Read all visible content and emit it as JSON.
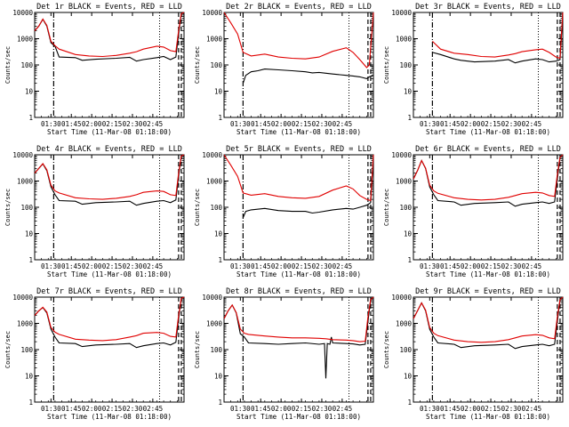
{
  "chart_data": [
    {
      "type": "line",
      "title": "Det 1r BLACK = Events, RED = LLD",
      "xlabel": "Start Time (11-Mar-08 01:18:00)",
      "ylabel": "Counts/sec",
      "yscale": "log",
      "ylim": [
        1,
        10000
      ],
      "xtick_labels": [
        "01:30",
        "01:45",
        "02:00",
        "02:15",
        "02:30",
        "02:45"
      ],
      "series": [
        {
          "name": "Events",
          "color": "#000000",
          "x": [
            0,
            3,
            6,
            9,
            12,
            15,
            18,
            30,
            35,
            45,
            60,
            70,
            75,
            80,
            90,
            95,
            100,
            104,
            106,
            108,
            110
          ],
          "y": [
            2000,
            3000,
            5500,
            3000,
            700,
            520,
            200,
            190,
            150,
            165,
            180,
            195,
            140,
            160,
            190,
            210,
            160,
            200,
            1500,
            9000,
            11000
          ]
        },
        {
          "name": "LLD",
          "color": "#e00000",
          "x": [
            0,
            3,
            6,
            9,
            12,
            15,
            18,
            30,
            40,
            50,
            60,
            70,
            75,
            80,
            90,
            95,
            100,
            104,
            106,
            108,
            110
          ],
          "y": [
            2000,
            3000,
            5600,
            3200,
            800,
            540,
            400,
            250,
            220,
            210,
            230,
            280,
            320,
            400,
            520,
            480,
            350,
            320,
            2000,
            9000,
            11000
          ]
        }
      ]
    },
    {
      "type": "line",
      "title": "Det 2r BLACK = Events, RED = LLD",
      "xlabel": "Start Time (11-Mar-08 01:18:00)",
      "ylabel": "Counts/sec",
      "yscale": "log",
      "ylim": [
        1,
        10000
      ],
      "xtick_labels": [
        "01:30",
        "01:45",
        "02:00",
        "02:15",
        "02:30",
        "02:45"
      ],
      "series": [
        {
          "name": "Events",
          "color": "#000000",
          "x": [
            14,
            16,
            20,
            25,
            30,
            40,
            50,
            60,
            65,
            70,
            80,
            90,
            95,
            100,
            105,
            107,
            110
          ],
          "y": [
            20,
            40,
            55,
            60,
            70,
            65,
            60,
            55,
            50,
            52,
            45,
            40,
            38,
            35,
            30,
            35,
            40
          ]
        },
        {
          "name": "LLD",
          "color": "#e00000",
          "x": [
            0,
            5,
            10,
            14,
            20,
            30,
            40,
            50,
            60,
            70,
            80,
            90,
            95,
            100,
            105,
            107,
            110
          ],
          "y": [
            11000,
            4000,
            1500,
            300,
            220,
            260,
            200,
            180,
            170,
            200,
            330,
            450,
            300,
            160,
            80,
            100,
            11000
          ]
        }
      ]
    },
    {
      "type": "line",
      "title": "Det 3r BLACK = Events, RED = LLD",
      "xlabel": "Start Time (11-Mar-08 01:18:00)",
      "ylabel": "Counts/sec",
      "yscale": "log",
      "ylim": [
        1,
        10000
      ],
      "xtick_labels": [
        "01:30",
        "01:45",
        "02:00",
        "02:15",
        "02:30",
        "02:45"
      ],
      "series": [
        {
          "name": "Events",
          "color": "#000000",
          "x": [
            14,
            20,
            30,
            35,
            45,
            60,
            70,
            75,
            80,
            90,
            95,
            100,
            105,
            108,
            110
          ],
          "y": [
            300,
            250,
            170,
            150,
            130,
            140,
            160,
            120,
            140,
            170,
            160,
            130,
            140,
            160,
            10000
          ]
        },
        {
          "name": "LLD",
          "color": "#e00000",
          "x": [
            14,
            20,
            30,
            40,
            50,
            60,
            70,
            75,
            80,
            90,
            95,
            100,
            105,
            108,
            110
          ],
          "y": [
            800,
            400,
            280,
            250,
            210,
            200,
            240,
            270,
            320,
            380,
            400,
            300,
            200,
            180,
            11000
          ]
        }
      ]
    },
    {
      "type": "line",
      "title": "Det 4r BLACK = Events, RED = LLD",
      "xlabel": "Start Time (11-Mar-08 01:18:00)",
      "ylabel": "Counts/sec",
      "yscale": "log",
      "ylim": [
        1,
        10000
      ],
      "xtick_labels": [
        "01:30",
        "01:45",
        "02:00",
        "02:15",
        "02:30",
        "02:45"
      ],
      "series": [
        {
          "name": "Events",
          "color": "#000000",
          "x": [
            0,
            3,
            6,
            9,
            12,
            15,
            18,
            30,
            35,
            45,
            60,
            70,
            75,
            80,
            90,
            95,
            100,
            104,
            106,
            108,
            110
          ],
          "y": [
            2000,
            3000,
            4500,
            2500,
            600,
            300,
            180,
            170,
            130,
            150,
            160,
            170,
            120,
            140,
            170,
            180,
            150,
            190,
            1500,
            9000,
            11000
          ]
        },
        {
          "name": "LLD",
          "color": "#e00000",
          "x": [
            0,
            3,
            6,
            9,
            12,
            15,
            18,
            30,
            40,
            50,
            60,
            70,
            75,
            80,
            90,
            95,
            100,
            104,
            106,
            108,
            110
          ],
          "y": [
            2000,
            3000,
            4600,
            2700,
            700,
            420,
            350,
            230,
            210,
            200,
            220,
            260,
            300,
            370,
            420,
            400,
            300,
            280,
            2000,
            9000,
            11000
          ]
        }
      ]
    },
    {
      "type": "line",
      "title": "Det 5r BLACK = Events, RED = LLD",
      "xlabel": "Start Time (11-Mar-08 01:18:00)",
      "ylabel": "Counts/sec",
      "yscale": "log",
      "ylim": [
        1,
        10000
      ],
      "xtick_labels": [
        "01:30",
        "01:45",
        "02:00",
        "02:15",
        "02:30",
        "02:45"
      ],
      "series": [
        {
          "name": "Events",
          "color": "#000000",
          "x": [
            14,
            16,
            20,
            30,
            40,
            50,
            60,
            65,
            70,
            80,
            90,
            95,
            100,
            105,
            108,
            110
          ],
          "y": [
            40,
            70,
            80,
            90,
            75,
            70,
            70,
            60,
            65,
            80,
            90,
            85,
            100,
            120,
            150,
            11000
          ]
        },
        {
          "name": "LLD",
          "color": "#e00000",
          "x": [
            0,
            5,
            10,
            14,
            20,
            30,
            40,
            50,
            60,
            70,
            80,
            90,
            95,
            100,
            105,
            108,
            110
          ],
          "y": [
            11000,
            4000,
            1500,
            350,
            290,
            330,
            260,
            230,
            220,
            260,
            450,
            650,
            500,
            280,
            200,
            180,
            11000
          ]
        }
      ]
    },
    {
      "type": "line",
      "title": "Det 6r BLACK = Events, RED = LLD",
      "xlabel": "Start Time (11-Mar-08 01:18:00)",
      "ylabel": "Counts/sec",
      "yscale": "log",
      "ylim": [
        1,
        10000
      ],
      "xtick_labels": [
        "01:30",
        "01:45",
        "02:00",
        "02:15",
        "02:30",
        "02:45"
      ],
      "series": [
        {
          "name": "Events",
          "color": "#000000",
          "x": [
            0,
            3,
            6,
            9,
            12,
            15,
            18,
            30,
            35,
            45,
            60,
            70,
            75,
            80,
            90,
            95,
            100,
            104,
            106,
            108,
            110
          ],
          "y": [
            1200,
            2500,
            6000,
            3000,
            600,
            300,
            180,
            160,
            120,
            140,
            150,
            160,
            110,
            130,
            150,
            160,
            140,
            160,
            1200,
            8000,
            11000
          ]
        },
        {
          "name": "LLD",
          "color": "#e00000",
          "x": [
            0,
            3,
            6,
            9,
            12,
            15,
            18,
            30,
            40,
            50,
            60,
            70,
            75,
            80,
            90,
            95,
            100,
            104,
            106,
            108,
            110
          ],
          "y": [
            1200,
            2500,
            6000,
            3100,
            700,
            420,
            340,
            230,
            200,
            190,
            200,
            240,
            280,
            330,
            370,
            350,
            280,
            260,
            1800,
            8000,
            11000
          ]
        }
      ]
    },
    {
      "type": "line",
      "title": "Det 7r BLACK = Events, RED = LLD",
      "xlabel": "Start Time (11-Mar-08 01:18:00)",
      "ylabel": "Counts/sec",
      "yscale": "log",
      "ylim": [
        1,
        10000
      ],
      "xtick_labels": [
        "01:30",
        "01:45",
        "02:00",
        "02:15",
        "02:30",
        "02:45"
      ],
      "series": [
        {
          "name": "Events",
          "color": "#000000",
          "x": [
            0,
            3,
            6,
            9,
            12,
            15,
            18,
            30,
            35,
            45,
            60,
            70,
            75,
            80,
            90,
            95,
            100,
            104,
            106,
            108,
            110
          ],
          "y": [
            2000,
            3000,
            4000,
            2500,
            600,
            300,
            180,
            170,
            130,
            150,
            160,
            170,
            120,
            140,
            170,
            180,
            150,
            190,
            1500,
            9000,
            11000
          ]
        },
        {
          "name": "LLD",
          "color": "#e00000",
          "x": [
            0,
            3,
            6,
            9,
            12,
            15,
            18,
            30,
            40,
            50,
            60,
            70,
            75,
            80,
            90,
            95,
            100,
            104,
            106,
            108,
            110
          ],
          "y": [
            2000,
            3000,
            4100,
            2700,
            700,
            460,
            380,
            250,
            230,
            220,
            240,
            300,
            340,
            420,
            450,
            420,
            320,
            300,
            2000,
            9000,
            11000
          ]
        }
      ]
    },
    {
      "type": "line",
      "title": "Det 8r BLACK = Events, RED = LLD",
      "xlabel": "Start Time (11-Mar-08 01:18:00)",
      "ylabel": "Counts/sec",
      "yscale": "log",
      "ylim": [
        1,
        10000
      ],
      "xtick_labels": [
        "01:30",
        "01:45",
        "02:00",
        "02:15",
        "02:30",
        "02:45"
      ],
      "series": [
        {
          "name": "Events",
          "color": "#000000",
          "x": [
            0,
            3,
            6,
            9,
            12,
            15,
            18,
            30,
            40,
            50,
            60,
            70,
            74,
            75,
            76,
            78,
            79,
            80,
            90,
            95,
            100,
            104,
            106,
            108,
            110
          ],
          "y": [
            1500,
            3000,
            5000,
            2500,
            400,
            300,
            180,
            170,
            160,
            170,
            180,
            160,
            170,
            8,
            170,
            160,
            300,
            180,
            170,
            165,
            150,
            160,
            1200,
            8000,
            11000
          ]
        },
        {
          "name": "LLD",
          "color": "#e00000",
          "x": [
            0,
            3,
            6,
            9,
            12,
            15,
            18,
            30,
            40,
            50,
            60,
            70,
            75,
            80,
            90,
            95,
            100,
            104,
            106,
            108,
            110
          ],
          "y": [
            1500,
            3000,
            5000,
            2600,
            600,
            420,
            380,
            330,
            300,
            280,
            280,
            270,
            260,
            240,
            230,
            220,
            200,
            210,
            1800,
            8000,
            11000
          ]
        }
      ]
    },
    {
      "type": "line",
      "title": "Det 9r BLACK = Events, RED = LLD",
      "xlabel": "Start Time (11-Mar-08 01:18:00)",
      "ylabel": "Counts/sec",
      "yscale": "log",
      "ylim": [
        1,
        10000
      ],
      "xtick_labels": [
        "01:30",
        "01:45",
        "02:00",
        "02:15",
        "02:30",
        "02:45"
      ],
      "series": [
        {
          "name": "Events",
          "color": "#000000",
          "x": [
            0,
            3,
            6,
            9,
            12,
            15,
            18,
            30,
            35,
            45,
            60,
            70,
            75,
            80,
            90,
            95,
            100,
            104,
            106,
            108,
            110
          ],
          "y": [
            1500,
            3000,
            6000,
            3000,
            600,
            300,
            180,
            160,
            120,
            140,
            150,
            160,
            110,
            130,
            150,
            160,
            140,
            160,
            1200,
            8000,
            11000
          ]
        },
        {
          "name": "LLD",
          "color": "#e00000",
          "x": [
            0,
            3,
            6,
            9,
            12,
            15,
            18,
            30,
            40,
            50,
            60,
            70,
            75,
            80,
            90,
            95,
            100,
            104,
            106,
            108,
            110
          ],
          "y": [
            1500,
            3000,
            6000,
            3200,
            700,
            420,
            340,
            230,
            200,
            190,
            200,
            240,
            280,
            330,
            370,
            350,
            280,
            260,
            1800,
            8000,
            11000
          ]
        }
      ]
    }
  ]
}
